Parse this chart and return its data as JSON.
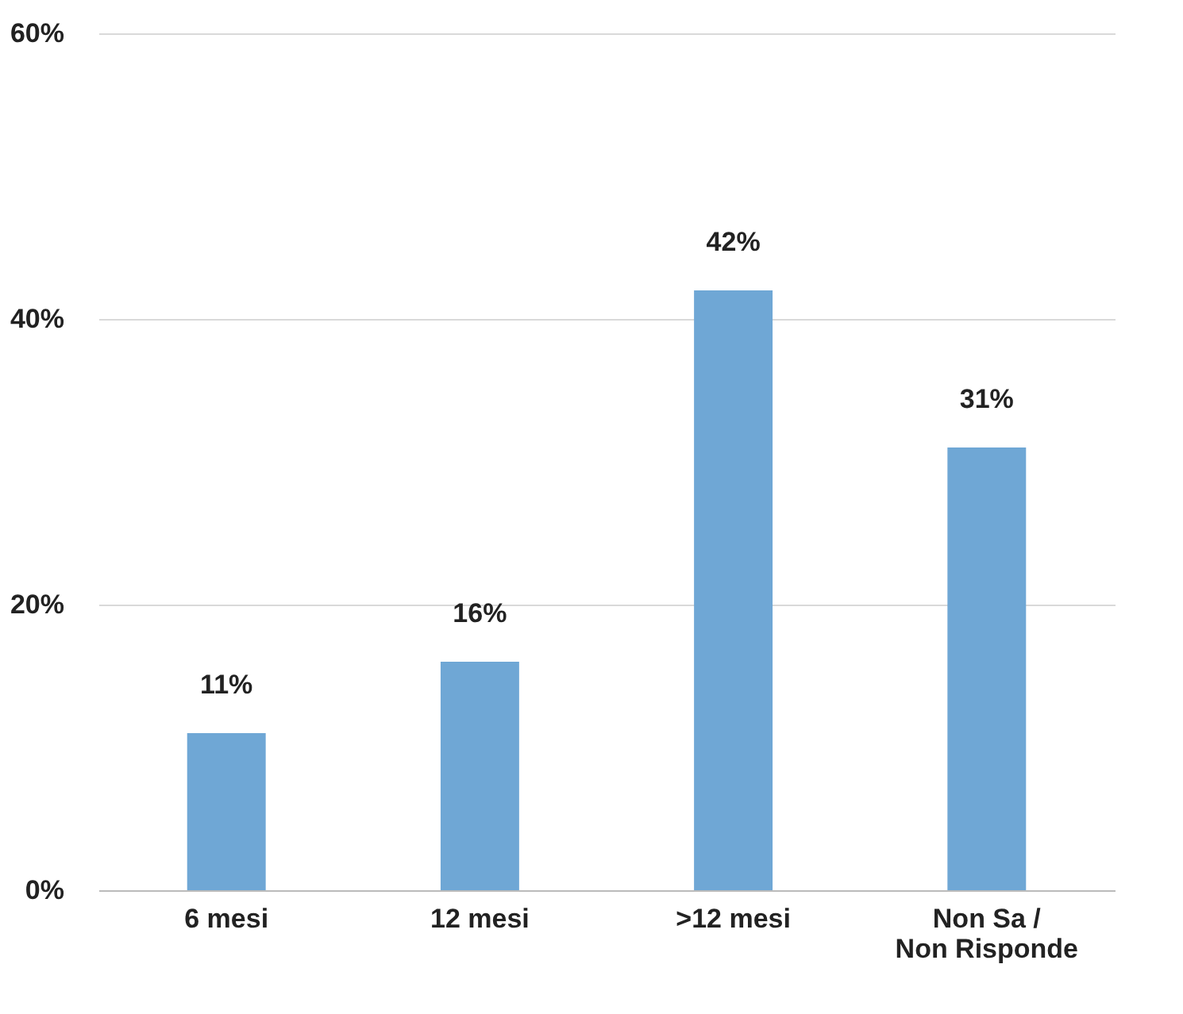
{
  "chart_data": {
    "type": "bar",
    "categories": [
      "6 mesi",
      "12 mesi",
      ">12 mesi",
      "Non Sa / Non Risponde"
    ],
    "values": [
      11,
      16,
      42,
      31
    ],
    "value_labels": [
      "11%",
      "16%",
      "42%",
      "31%"
    ],
    "color": "#6fa7d5",
    "ylim": [
      0,
      60
    ],
    "yticks": [
      {
        "value": 0,
        "label": "0%"
      },
      {
        "value": 20,
        "label": "20%"
      },
      {
        "value": 40,
        "label": "40%"
      },
      {
        "value": 60,
        "label": "60%"
      }
    ],
    "grid": "y"
  }
}
